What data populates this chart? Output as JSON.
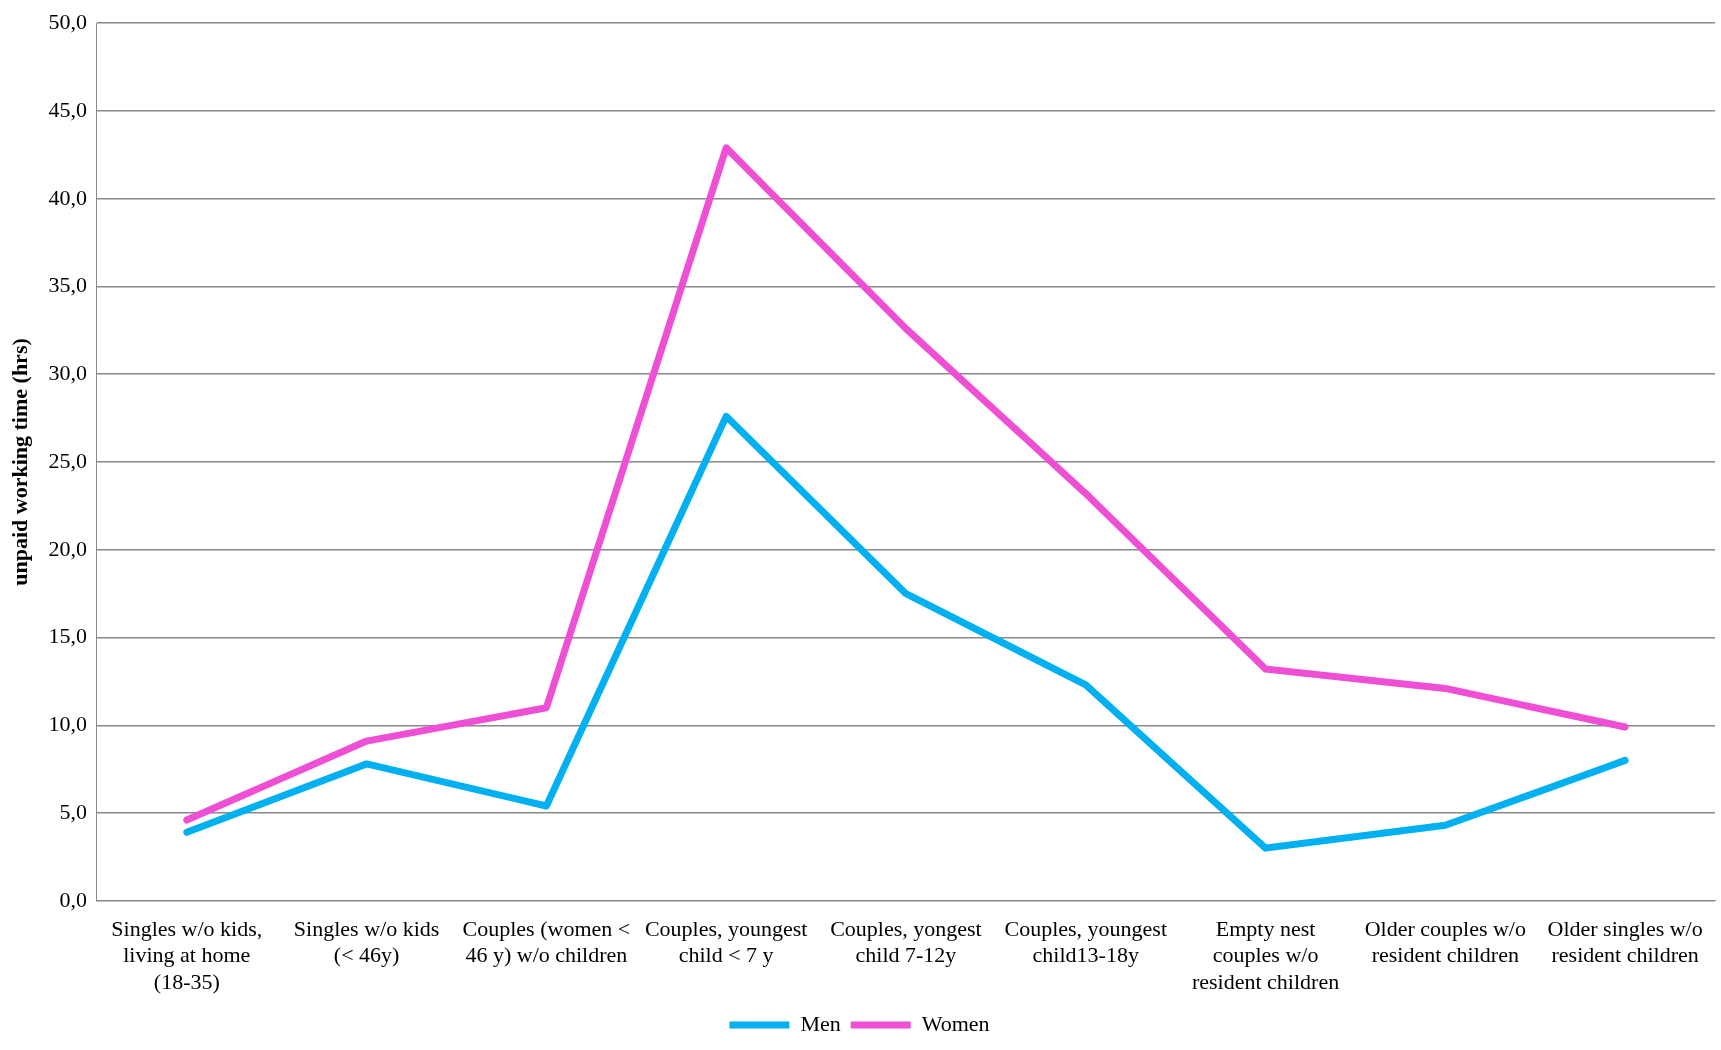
{
  "chart_data": {
    "type": "line",
    "ylabel": "unpaid working time (hrs)",
    "categories": [
      "Singles w/o kids, living at home (18-35)",
      "Singles w/o kids (< 46y)",
      "Couples (women < 46 y) w/o children",
      "Couples, youngest child < 7 y",
      "Couples, yongest child 7-12y",
      "Couples, youngest child13-18y",
      "Empty nest couples w/o resident children",
      "Older couples w/o resident children",
      "Older singles w/o resident children"
    ],
    "series": [
      {
        "name": "Men",
        "color": "#00b0f0",
        "values": [
          3.9,
          7.8,
          5.4,
          27.6,
          17.5,
          12.3,
          3.0,
          4.3,
          8.0
        ]
      },
      {
        "name": "Women",
        "color": "#ee4fd4",
        "values": [
          4.6,
          9.1,
          11.0,
          42.9,
          32.6,
          23.2,
          13.2,
          12.1,
          9.9
        ]
      }
    ],
    "ylim": [
      0,
      50
    ],
    "yticks": [
      {
        "value": 0,
        "label": "0,0"
      },
      {
        "value": 5,
        "label": "5,0"
      },
      {
        "value": 10,
        "label": "10,0"
      },
      {
        "value": 15,
        "label": "15,0"
      },
      {
        "value": 20,
        "label": "20,0"
      },
      {
        "value": 25,
        "label": "25,0"
      },
      {
        "value": 30,
        "label": "30,0"
      },
      {
        "value": 35,
        "label": "35,0"
      },
      {
        "value": 40,
        "label": "40,0"
      },
      {
        "value": 45,
        "label": "45,0"
      },
      {
        "value": 50,
        "label": "50,0"
      }
    ],
    "grid": "y",
    "legend": "bottom",
    "marker": "none",
    "line_style": "solid"
  }
}
